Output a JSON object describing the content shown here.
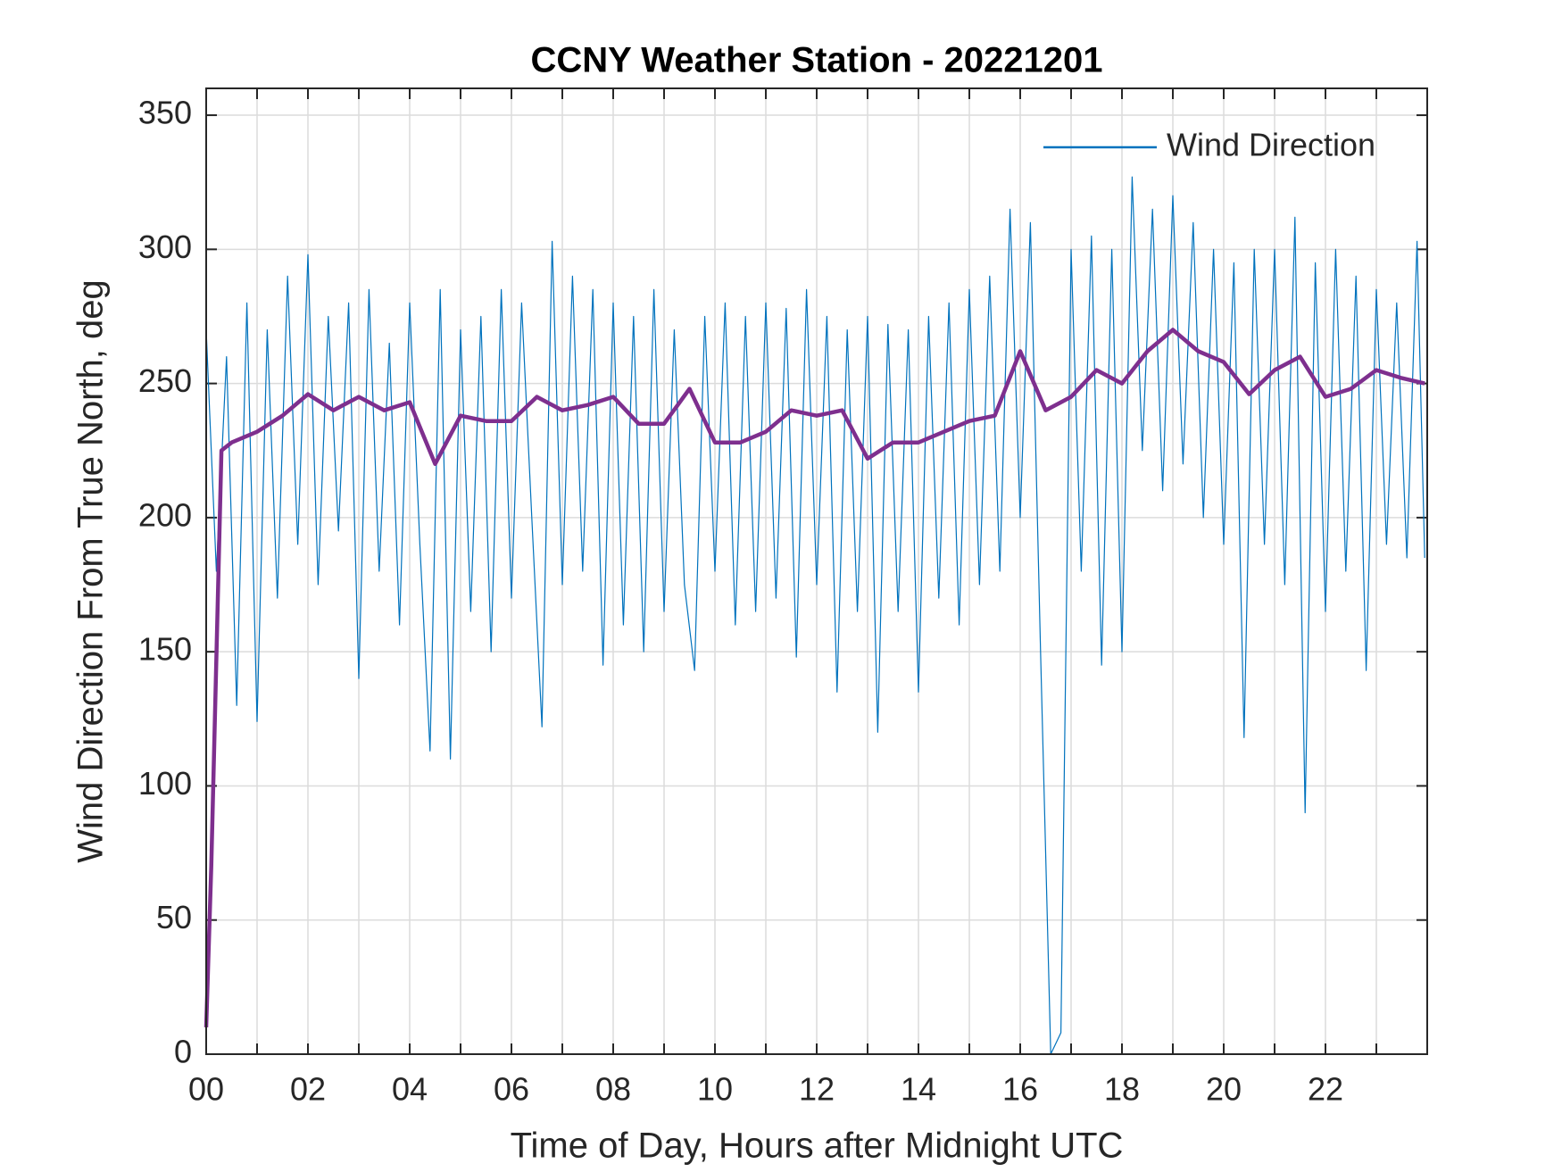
{
  "chart_data": {
    "type": "line",
    "title": "CCNY Weather Station - 20221201",
    "xlabel": "Time of Day, Hours after Midnight UTC",
    "ylabel": "Wind Direction From True North, deg",
    "xlim": [
      0,
      24
    ],
    "ylim": [
      0,
      360
    ],
    "xticks": [
      {
        "value": 0,
        "label": "00"
      },
      {
        "value": 2,
        "label": "02"
      },
      {
        "value": 4,
        "label": "04"
      },
      {
        "value": 6,
        "label": "06"
      },
      {
        "value": 8,
        "label": "08"
      },
      {
        "value": 10,
        "label": "10"
      },
      {
        "value": 12,
        "label": "12"
      },
      {
        "value": 14,
        "label": "14"
      },
      {
        "value": 16,
        "label": "16"
      },
      {
        "value": 18,
        "label": "18"
      },
      {
        "value": 20,
        "label": "20"
      },
      {
        "value": 22,
        "label": "22"
      }
    ],
    "xminorticks": [
      1,
      3,
      5,
      7,
      9,
      11,
      13,
      15,
      17,
      19,
      21,
      23
    ],
    "yticks": [
      0,
      50,
      100,
      150,
      200,
      250,
      300,
      350
    ],
    "grid": true,
    "legend": "northeast",
    "series": [
      {
        "name": "Wind Direction",
        "color": "#0072bd",
        "line_width": 1.2,
        "x": [
          0,
          0.2,
          0.4,
          0.6,
          0.8,
          1,
          1.2,
          1.4,
          1.6,
          1.8,
          2,
          2.2,
          2.4,
          2.6,
          2.8,
          3,
          3.2,
          3.4,
          3.6,
          3.8,
          4,
          4.2,
          4.4,
          4.6,
          4.8,
          5,
          5.2,
          5.4,
          5.6,
          5.8,
          6,
          6.2,
          6.4,
          6.6,
          6.8,
          7,
          7.2,
          7.4,
          7.6,
          7.8,
          8,
          8.2,
          8.4,
          8.6,
          8.8,
          9,
          9.2,
          9.4,
          9.6,
          9.8,
          10,
          10.2,
          10.4,
          10.6,
          10.8,
          11,
          11.2,
          11.4,
          11.6,
          11.8,
          12,
          12.2,
          12.4,
          12.6,
          12.8,
          13,
          13.2,
          13.4,
          13.6,
          13.8,
          14,
          14.2,
          14.4,
          14.6,
          14.8,
          15,
          15.2,
          15.4,
          15.6,
          15.8,
          16,
          16.2,
          16.4,
          16.6,
          16.8,
          17,
          17.2,
          17.4,
          17.6,
          17.8,
          18,
          18.2,
          18.4,
          18.6,
          18.8,
          19,
          19.2,
          19.4,
          19.6,
          19.8,
          20,
          20.2,
          20.4,
          20.6,
          20.8,
          21,
          21.2,
          21.4,
          21.6,
          21.8,
          22,
          22.2,
          22.4,
          22.6,
          22.8,
          23,
          23.2,
          23.4,
          23.6,
          23.8,
          23.95
        ],
        "values": [
          270,
          180,
          260,
          130,
          280,
          124,
          270,
          170,
          290,
          190,
          298,
          175,
          275,
          195,
          280,
          140,
          285,
          180,
          265,
          160,
          280,
          190,
          113,
          285,
          110,
          270,
          165,
          275,
          150,
          285,
          170,
          280,
          200,
          122,
          303,
          175,
          290,
          180,
          285,
          145,
          280,
          160,
          275,
          150,
          285,
          165,
          270,
          175,
          143,
          275,
          180,
          280,
          160,
          275,
          165,
          280,
          170,
          278,
          148,
          285,
          175,
          275,
          135,
          270,
          165,
          275,
          120,
          272,
          165,
          270,
          135,
          275,
          170,
          280,
          160,
          285,
          175,
          290,
          180,
          315,
          200,
          310,
          150,
          0,
          8,
          300,
          180,
          305,
          145,
          300,
          150,
          327,
          225,
          315,
          210,
          320,
          220,
          310,
          200,
          300,
          190,
          295,
          118,
          300,
          190,
          300,
          175,
          312,
          90,
          295,
          165,
          300,
          180,
          290,
          143,
          285,
          190,
          280,
          185,
          303,
          185
        ]
      },
      {
        "color": "#7e2f8e",
        "line_width": 4.5,
        "x": [
          0,
          0.1,
          0.3,
          0.5,
          1,
          1.5,
          2,
          2.5,
          3,
          3.5,
          4,
          4.5,
          5,
          5.5,
          6,
          6.5,
          7,
          7.5,
          8,
          8.5,
          9,
          9.5,
          10,
          10.5,
          11,
          11.5,
          12,
          12.5,
          13,
          13.5,
          14,
          14.5,
          15,
          15.5,
          16,
          16.5,
          17,
          17.5,
          18,
          18.5,
          19,
          19.5,
          20,
          20.5,
          21,
          21.5,
          22,
          22.5,
          23,
          23.5,
          23.95
        ],
        "values": [
          10,
          70,
          225,
          228,
          232,
          238,
          246,
          240,
          245,
          240,
          243,
          220,
          238,
          236,
          236,
          245,
          240,
          242,
          245,
          235,
          235,
          248,
          228,
          228,
          232,
          240,
          238,
          240,
          222,
          228,
          228,
          232,
          236,
          238,
          262,
          240,
          245,
          255,
          250,
          262,
          270,
          262,
          258,
          246,
          255,
          260,
          245,
          248,
          255,
          252,
          250
        ]
      }
    ]
  }
}
